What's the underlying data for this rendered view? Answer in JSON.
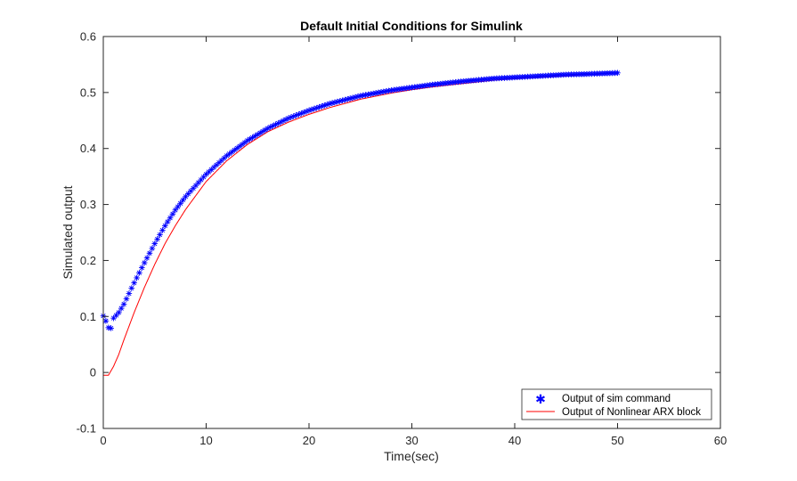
{
  "chart_data": {
    "type": "line",
    "title": "Default Initial Conditions for Simulink",
    "xlabel": "Time(sec)",
    "ylabel": "Simulated output",
    "xlim": [
      0,
      60
    ],
    "ylim": [
      -0.1,
      0.6
    ],
    "xticks": [
      0,
      10,
      20,
      30,
      40,
      50,
      60
    ],
    "yticks": [
      -0.1,
      0,
      0.1,
      0.2,
      0.3,
      0.4,
      0.5,
      0.6
    ],
    "xtick_labels": [
      "0",
      "10",
      "20",
      "30",
      "40",
      "50",
      "60"
    ],
    "ytick_labels": [
      "-0.1",
      "0",
      "0.1",
      "0.2",
      "0.3",
      "0.4",
      "0.5",
      "0.6"
    ],
    "grid": false,
    "legend_position": "bottom-right",
    "series": [
      {
        "name": "Output of sim command",
        "marker": "asterisk",
        "color": "#0000ff",
        "x": [
          0,
          0.25,
          0.5,
          0.75,
          1,
          1.5,
          2,
          3,
          4,
          5,
          6,
          7,
          8,
          10,
          12,
          14,
          16,
          18,
          20,
          22,
          25,
          28,
          30,
          32,
          35,
          38,
          40,
          42,
          45,
          47,
          50
        ],
        "y": [
          0.101,
          0.092,
          0.08,
          0.079,
          0.097,
          0.107,
          0.122,
          0.16,
          0.196,
          0.23,
          0.262,
          0.29,
          0.314,
          0.354,
          0.387,
          0.414,
          0.436,
          0.454,
          0.468,
          0.48,
          0.494,
          0.504,
          0.509,
          0.514,
          0.52,
          0.525,
          0.527,
          0.529,
          0.532,
          0.533,
          0.535
        ]
      },
      {
        "name": "Output of Nonlinear ARX block",
        "marker": "none",
        "color": "#ff0000",
        "x": [
          0,
          0.25,
          0.5,
          0.75,
          1,
          1.5,
          2,
          3,
          4,
          5,
          6,
          7,
          8,
          10,
          12,
          14,
          16,
          18,
          20,
          22,
          25,
          28,
          30,
          32,
          35,
          38,
          40,
          42,
          45,
          47,
          50
        ],
        "y": [
          -0.005,
          -0.005,
          -0.005,
          0.003,
          0.011,
          0.032,
          0.058,
          0.107,
          0.152,
          0.193,
          0.23,
          0.262,
          0.291,
          0.341,
          0.378,
          0.407,
          0.43,
          0.447,
          0.461,
          0.473,
          0.488,
          0.499,
          0.505,
          0.51,
          0.516,
          0.522,
          0.525,
          0.527,
          0.53,
          0.532,
          0.535
        ]
      }
    ]
  }
}
